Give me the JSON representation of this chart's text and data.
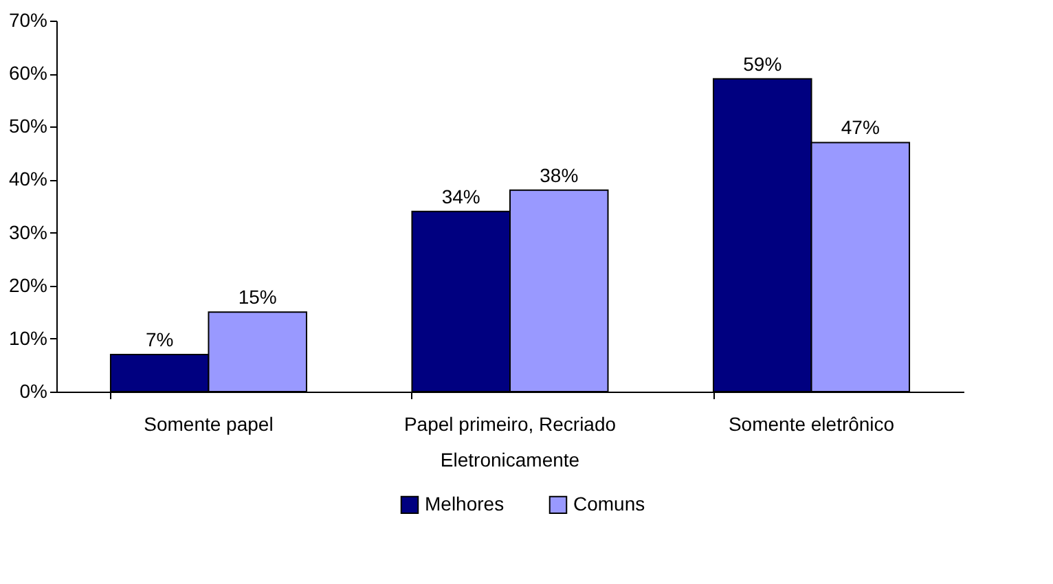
{
  "chart_data": {
    "type": "bar",
    "categories": [
      "Somente papel",
      "Papel primeiro, Recriado\nEletronicamente",
      "Somente eletrônico"
    ],
    "series": [
      {
        "name": "Melhores",
        "color": "#000080",
        "values": [
          7,
          34,
          59
        ],
        "value_labels": [
          "7%",
          "34%",
          "59%"
        ]
      },
      {
        "name": "Comuns",
        "color": "#9999ff",
        "values": [
          15,
          38,
          47
        ],
        "value_labels": [
          "15%",
          "38%",
          "47%"
        ]
      }
    ],
    "ylim": [
      0,
      70
    ],
    "yticks": [
      {
        "value": 0,
        "label": "0%"
      },
      {
        "value": 10,
        "label": "10%"
      },
      {
        "value": 20,
        "label": "20%"
      },
      {
        "value": 30,
        "label": "30%"
      },
      {
        "value": 40,
        "label": "40%"
      },
      {
        "value": 50,
        "label": "50%"
      },
      {
        "value": 60,
        "label": "60%"
      },
      {
        "value": 70,
        "label": "70%"
      }
    ],
    "grid": false,
    "legend": "bottom"
  }
}
